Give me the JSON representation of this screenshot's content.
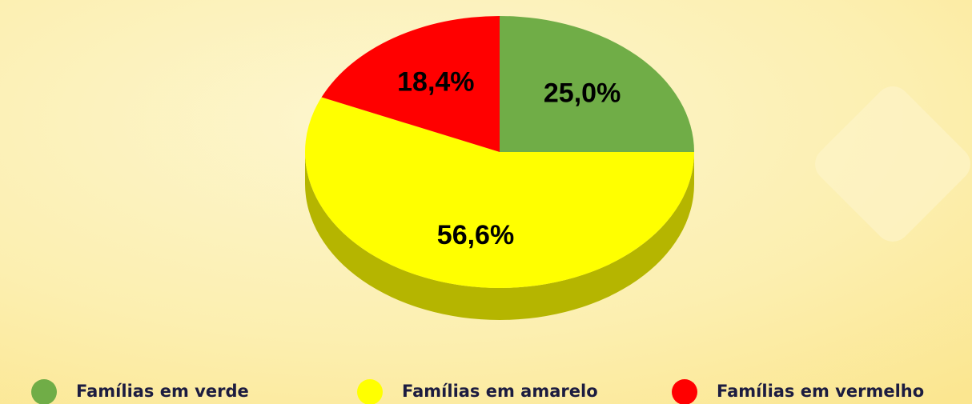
{
  "chart_data": {
    "type": "pie",
    "categories": [
      "Famílias  em verde",
      "Famílias em amarelo",
      "Famílias em vermelho"
    ],
    "values": [
      25.0,
      56.6,
      18.4
    ],
    "value_labels": [
      "25,0%",
      "56,6%",
      "18,4%"
    ],
    "colors": [
      "#70ad47",
      "#ffff00",
      "#ff0000"
    ]
  }
}
